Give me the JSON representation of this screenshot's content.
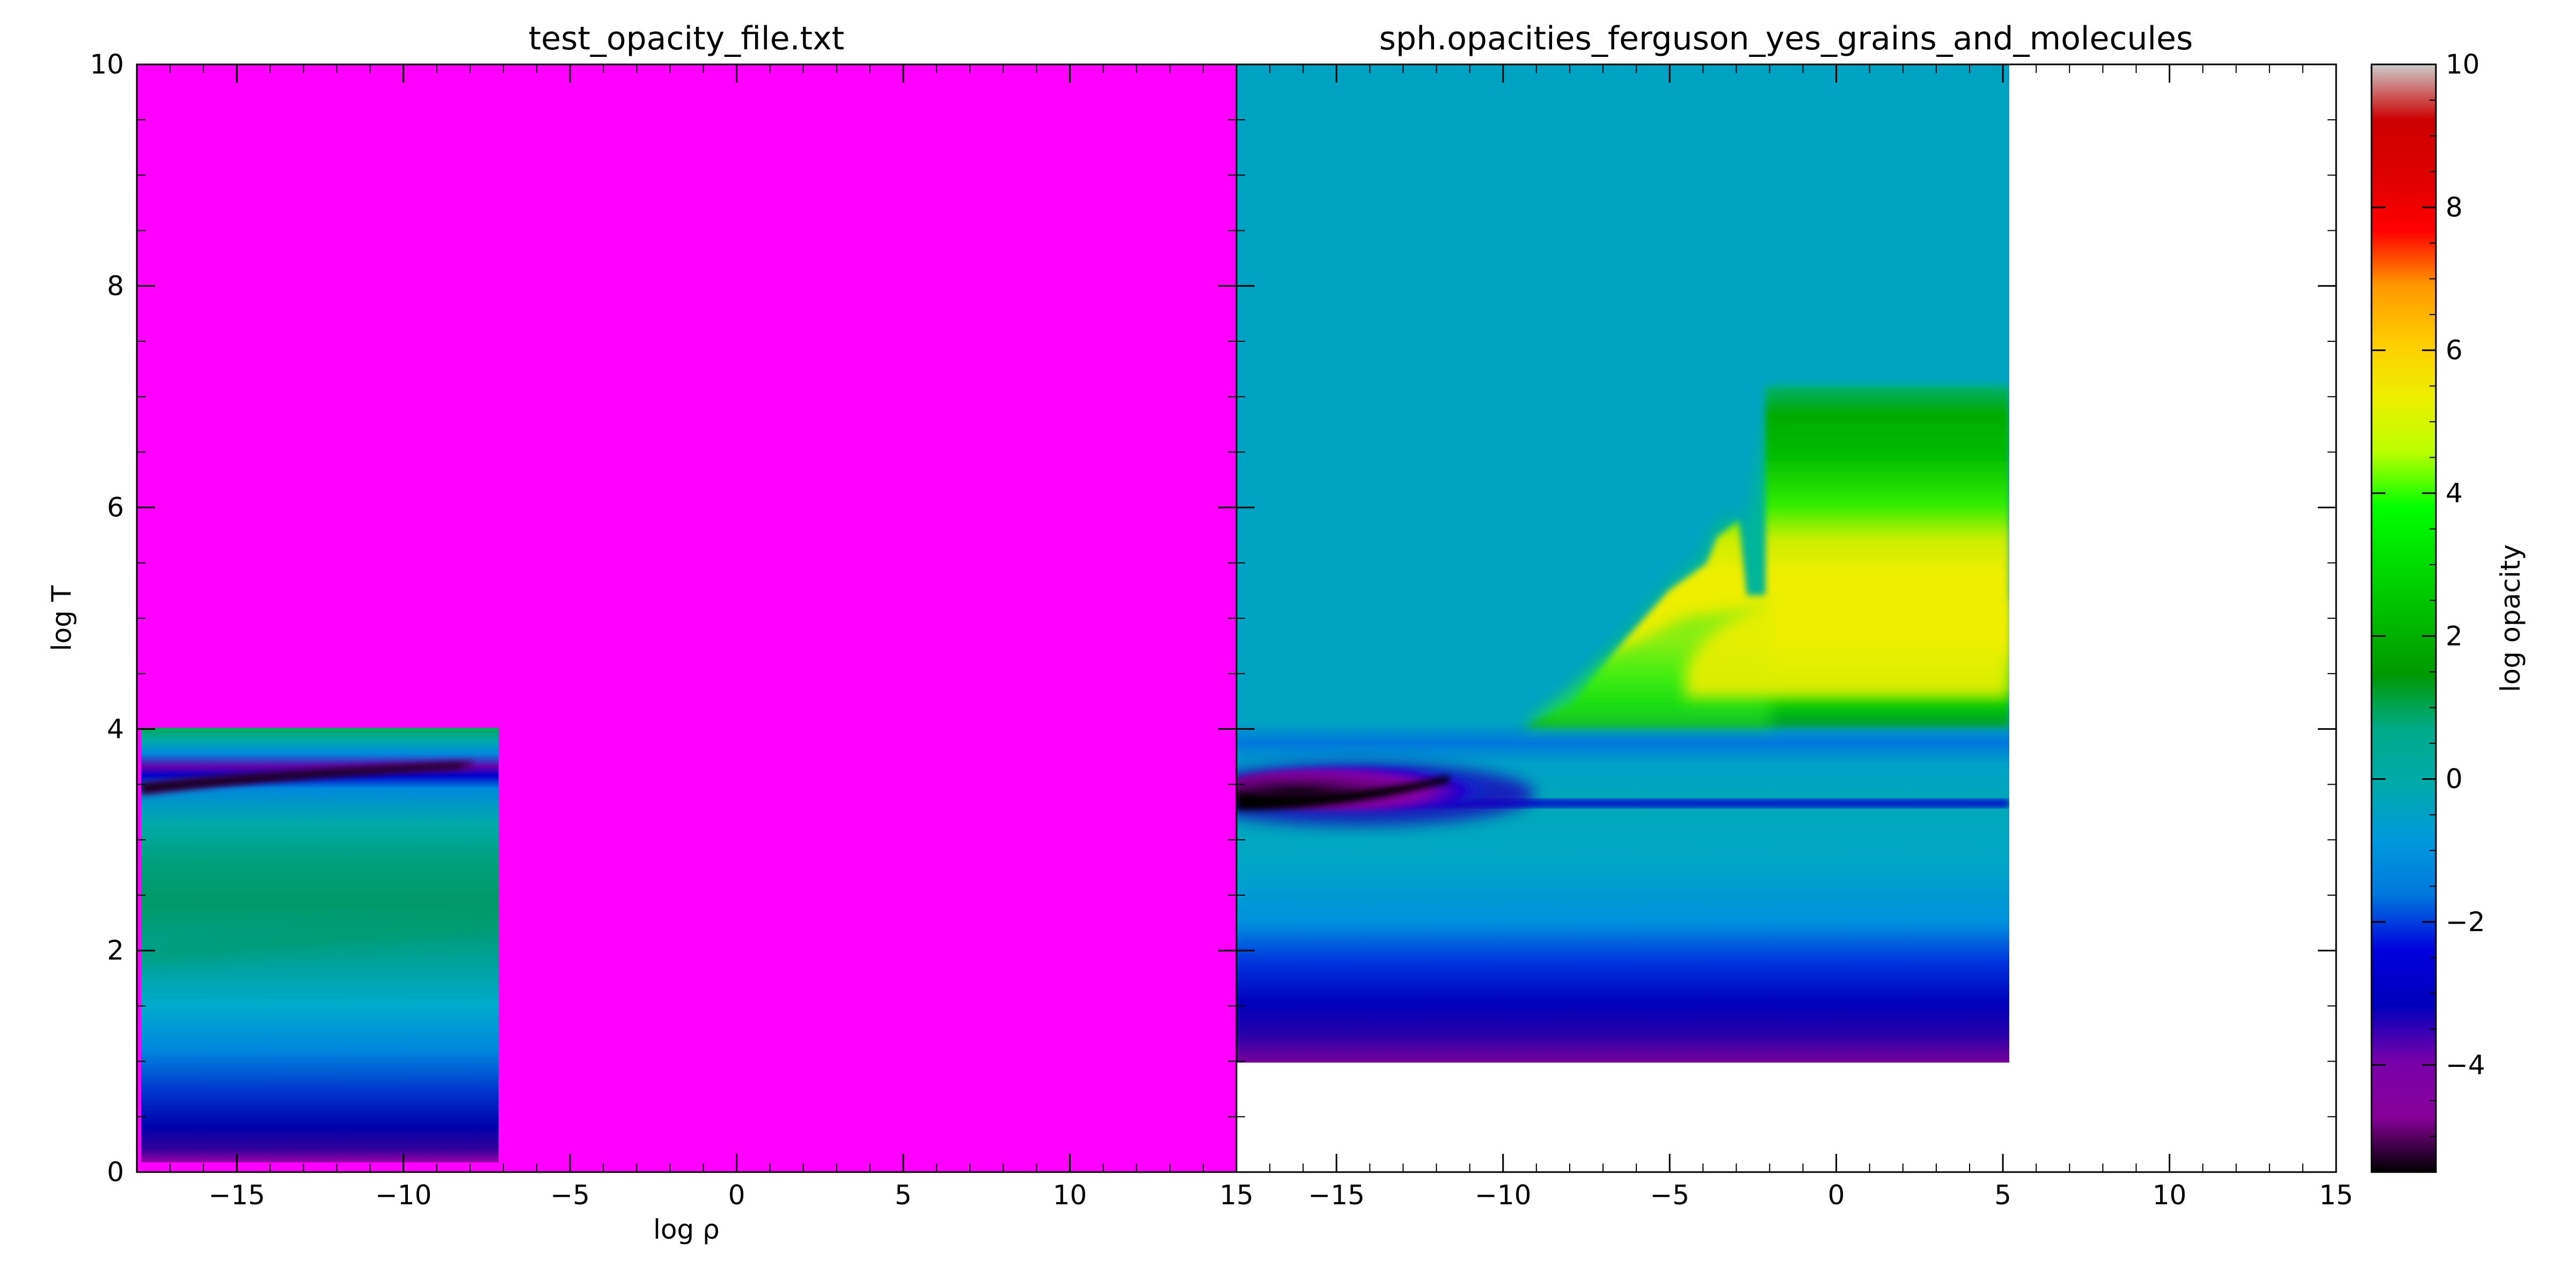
{
  "chart_data": [
    {
      "type": "heatmap",
      "title": "test_opacity_file.txt",
      "xlabel": "log ρ",
      "ylabel": "log T",
      "xlim": [
        -18,
        15
      ],
      "ylim": [
        0,
        10
      ],
      "x_ticks": [
        -15,
        -10,
        -5,
        0,
        5,
        10,
        15
      ],
      "y_ticks": [
        0,
        2,
        4,
        6,
        8,
        10
      ],
      "x_tick_labels": [
        "−15",
        "−10",
        "−5",
        "0",
        "5",
        "10",
        "15"
      ],
      "y_tick_labels": [
        "0",
        "2",
        "4",
        "6",
        "8",
        "10"
      ],
      "fill_value_color": "#ff00ff",
      "data_region": {
        "x_range": [
          -18,
          -7.2
        ],
        "y_range": [
          0.1,
          4.0
        ],
        "profile_log_opacity_vs_logT": [
          {
            "logT": 0.1,
            "value": -4.0
          },
          {
            "logT": 0.3,
            "value": -3.0
          },
          {
            "logT": 0.7,
            "value": -2.2
          },
          {
            "logT": 1.2,
            "value": -1.0
          },
          {
            "logT": 2.0,
            "value": 0.6
          },
          {
            "logT": 2.5,
            "value": 0.9
          },
          {
            "logT": 3.0,
            "value": 0.1
          },
          {
            "logT": 3.3,
            "value": -0.8
          },
          {
            "logT": 3.55,
            "value": -4.2
          },
          {
            "logT": 3.8,
            "value": -1.0
          },
          {
            "logT": 4.0,
            "value": 1.5
          }
        ]
      }
    },
    {
      "type": "heatmap",
      "title": "sph.opacities_ferguson_yes_grains_and_molecules",
      "xlabel": "",
      "ylabel": "",
      "xlim": [
        -18,
        15
      ],
      "ylim": [
        0,
        10
      ],
      "x_ticks": [
        -15,
        -10,
        -5,
        0,
        5,
        10,
        15
      ],
      "x_tick_labels": [
        "−15",
        "−10",
        "−5",
        "0",
        "5",
        "10",
        "15"
      ],
      "data_region": {
        "x_range": [
          -18,
          5
        ],
        "y_range": [
          1.0,
          10.0
        ],
        "background_log_opacity": -0.3,
        "features": [
          {
            "name": "low-T band",
            "logT": [
              1.0,
              1.8
            ],
            "value": -3.0
          },
          {
            "name": "molecular trough",
            "logT": [
              3.0,
              3.6
            ],
            "logR": [
              -18,
              -9
            ],
            "value": -5.0
          },
          {
            "name": "H ionization plateau",
            "logT": [
              3.9,
              7.0
            ],
            "logR": [
              -9,
              5
            ],
            "value": 4.5
          }
        ]
      }
    }
  ],
  "colorbar": {
    "label": "log opacity",
    "range": [
      -5.5,
      10
    ],
    "ticks": [
      -4,
      -2,
      0,
      2,
      4,
      6,
      8,
      10
    ],
    "tick_labels": [
      "−4",
      "−2",
      "0",
      "2",
      "4",
      "6",
      "8",
      "10"
    ],
    "colormap": "nipy_spectral"
  }
}
